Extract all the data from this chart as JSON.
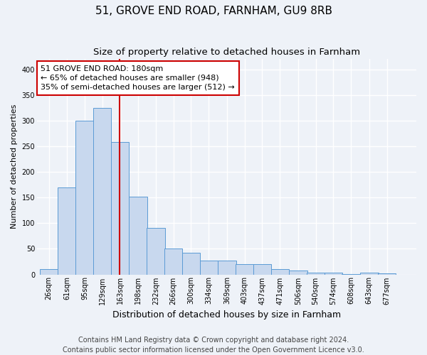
{
  "title": "51, GROVE END ROAD, FARNHAM, GU9 8RB",
  "subtitle": "Size of property relative to detached houses in Farnham",
  "xlabel": "Distribution of detached houses by size in Farnham",
  "ylabel": "Number of detached properties",
  "bin_edges": [
    26,
    61,
    95,
    129,
    163,
    198,
    232,
    266,
    300,
    334,
    369,
    403,
    437,
    471,
    506,
    540,
    574,
    608,
    643,
    677,
    711
  ],
  "bar_heights": [
    10,
    170,
    300,
    325,
    258,
    152,
    90,
    50,
    42,
    27,
    27,
    20,
    20,
    10,
    8,
    4,
    4,
    1,
    3,
    2
  ],
  "bar_color": "#c8d8ee",
  "bar_edge_color": "#5b9bd5",
  "property_size": 180,
  "red_line_color": "#cc0000",
  "annotation_text1": "51 GROVE END ROAD: 180sqm",
  "annotation_text2": "← 65% of detached houses are smaller (948)",
  "annotation_text3": "35% of semi-detached houses are larger (512) →",
  "annotation_box_color": "#ffffff",
  "annotation_box_edge": "#cc0000",
  "ylim": [
    0,
    420
  ],
  "yticks": [
    0,
    50,
    100,
    150,
    200,
    250,
    300,
    350,
    400
  ],
  "footer1": "Contains HM Land Registry data © Crown copyright and database right 2024.",
  "footer2": "Contains public sector information licensed under the Open Government Licence v3.0.",
  "background_color": "#eef2f8",
  "plot_background": "#eef2f8",
  "grid_color": "#ffffff",
  "title_fontsize": 11,
  "subtitle_fontsize": 9.5,
  "tick_fontsize": 7,
  "ylabel_fontsize": 8,
  "xlabel_fontsize": 9,
  "annotation_fontsize": 8,
  "footer_fontsize": 7
}
